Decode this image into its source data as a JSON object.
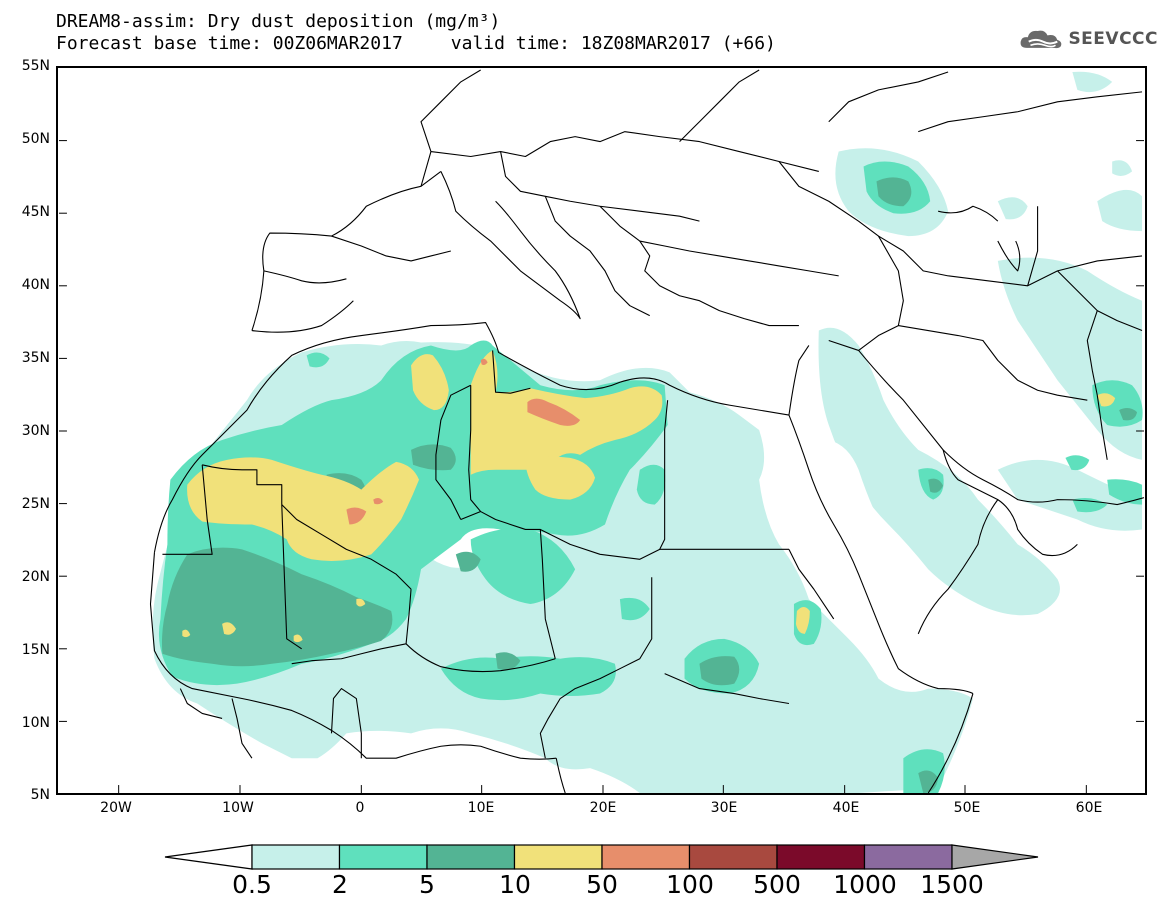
{
  "header": {
    "title_line1": "DREAM8-assim: Dry dust deposition (mg/m³)",
    "forecast_base": "Forecast base time: 00Z06MAR2017",
    "valid_time": "valid time: 18Z08MAR2017 (+66)",
    "logo_text": "SEEVCCC"
  },
  "map": {
    "projection": "lat-lon",
    "lon_range": [
      -25,
      65
    ],
    "lat_range": [
      5,
      55
    ],
    "lat_labels": [
      "55N",
      "50N",
      "45N",
      "40N",
      "35N",
      "30N",
      "25N",
      "20N",
      "15N",
      "10N",
      "5N"
    ],
    "lon_labels": [
      "20W",
      "10W",
      "0",
      "10E",
      "20E",
      "30E",
      "40E",
      "50E",
      "60E"
    ]
  },
  "legend": {
    "thresholds": [
      "0.5",
      "2",
      "5",
      "10",
      "50",
      "100",
      "500",
      "1000",
      "1500"
    ],
    "colors": [
      "#c6f0ea",
      "#5fe0bd",
      "#53b494",
      "#f1e17a",
      "#e78e6b",
      "#a8493f",
      "#7b0a2a",
      "#8b6a9f",
      "#a7a7a7"
    ]
  }
}
